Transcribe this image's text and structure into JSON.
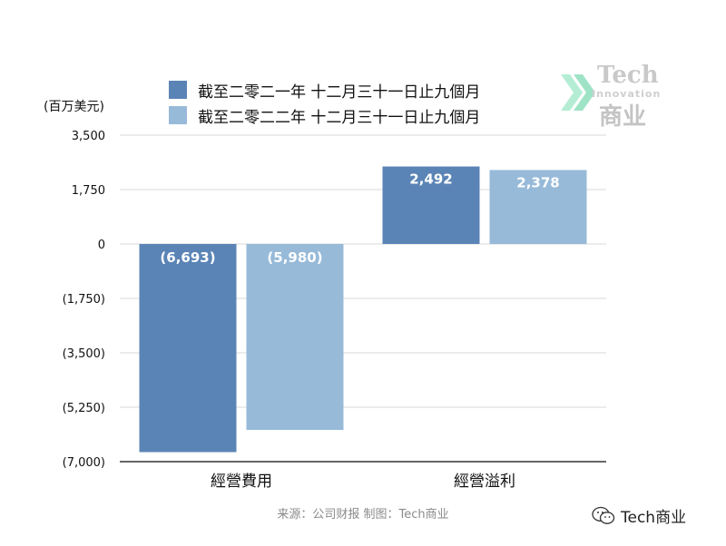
{
  "chart_data": {
    "type": "bar",
    "unit_label": "(百万美元)",
    "categories": [
      "經營費用",
      "經營溢利"
    ],
    "series": [
      {
        "name": "截至二零二一年 十二月三十一日止九個月",
        "color": "#5b84b6",
        "values": [
          -6693,
          2492
        ],
        "data_labels": [
          "(6,693)",
          "2,492"
        ]
      },
      {
        "name": "截至二零二二年 十二月三十一日止九個月",
        "color": "#97bad9",
        "values": [
          -5980,
          2378
        ],
        "data_labels": [
          "(5,980)",
          "2,378"
        ]
      }
    ],
    "ylim": [
      -7000,
      3500
    ],
    "yticks": [
      3500,
      1750,
      0,
      -1750,
      -3500,
      -5250,
      -7000
    ],
    "ytick_labels": [
      "3,500",
      "1,750",
      "0",
      "(1,750)",
      "(3,500)",
      "(5,250)",
      "(7,000)"
    ],
    "grid": true,
    "legend_position": "top"
  },
  "source_text": "来源：公司财报 制图：Tech商业",
  "watermark": {
    "tech": "Tech",
    "innovation": "Innovation",
    "cn": "商业",
    "icon": "double-chevron-icon"
  },
  "wechat_badge": {
    "icon": "wechat-icon",
    "text": "Tech商业"
  }
}
